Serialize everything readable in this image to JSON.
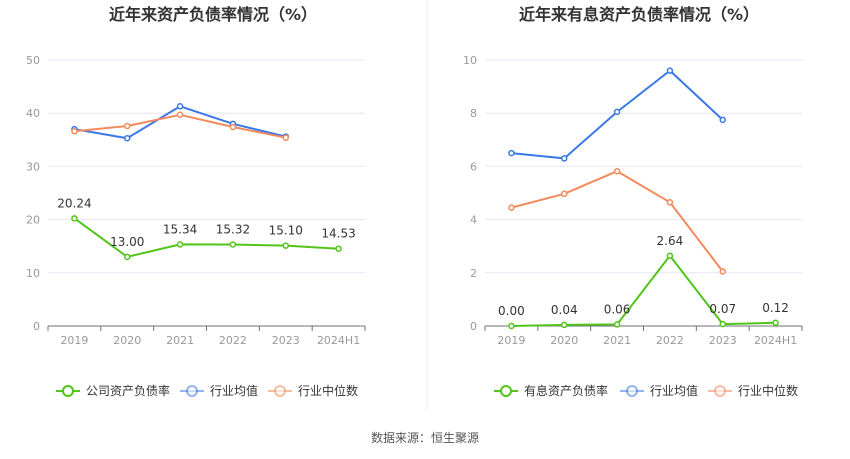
{
  "source": "数据来源：恒生聚源",
  "chart_data": [
    {
      "type": "line",
      "title": "近年来资产负债率情况（%）",
      "categories": [
        "2019",
        "2020",
        "2021",
        "2022",
        "2023",
        "2024H1"
      ],
      "ylim": [
        0,
        50
      ],
      "yticks": [
        0,
        10,
        20,
        30,
        40,
        50
      ],
      "grid": true,
      "legend_position": "bottom",
      "series": [
        {
          "name": "公司资产负债率",
          "color": "#52c41a",
          "values": [
            20.24,
            13.0,
            15.34,
            15.32,
            15.1,
            14.53
          ],
          "labels": [
            "20.24",
            "13.00",
            "15.34",
            "15.32",
            "15.10",
            "14.53"
          ]
        },
        {
          "name": "行业均值",
          "color": "#3b78e7",
          "values": [
            37.0,
            35.3,
            41.3,
            38.0,
            35.6,
            null
          ]
        },
        {
          "name": "行业中位数",
          "color": "#f28a5c",
          "values": [
            36.6,
            37.6,
            39.7,
            37.4,
            35.4,
            null
          ]
        }
      ]
    },
    {
      "type": "line",
      "title": "近年来有息资产负债率情况（%）",
      "categories": [
        "2019",
        "2020",
        "2021",
        "2022",
        "2023",
        "2024H1"
      ],
      "ylim": [
        0,
        10
      ],
      "yticks": [
        0,
        2,
        4,
        6,
        8,
        10
      ],
      "grid": true,
      "legend_position": "bottom",
      "series": [
        {
          "name": "有息资产负债率",
          "color": "#52c41a",
          "values": [
            0.0,
            0.04,
            0.06,
            2.64,
            0.07,
            0.12
          ],
          "labels": [
            "0.00",
            "0.04",
            "0.06",
            "2.64",
            "0.07",
            "0.12"
          ]
        },
        {
          "name": "行业均值",
          "color": "#3b78e7",
          "values": [
            6.5,
            6.3,
            8.05,
            9.6,
            7.75,
            null
          ]
        },
        {
          "name": "行业中位数",
          "color": "#f28a5c",
          "values": [
            4.45,
            4.97,
            5.82,
            4.65,
            2.05,
            null
          ]
        }
      ]
    }
  ]
}
